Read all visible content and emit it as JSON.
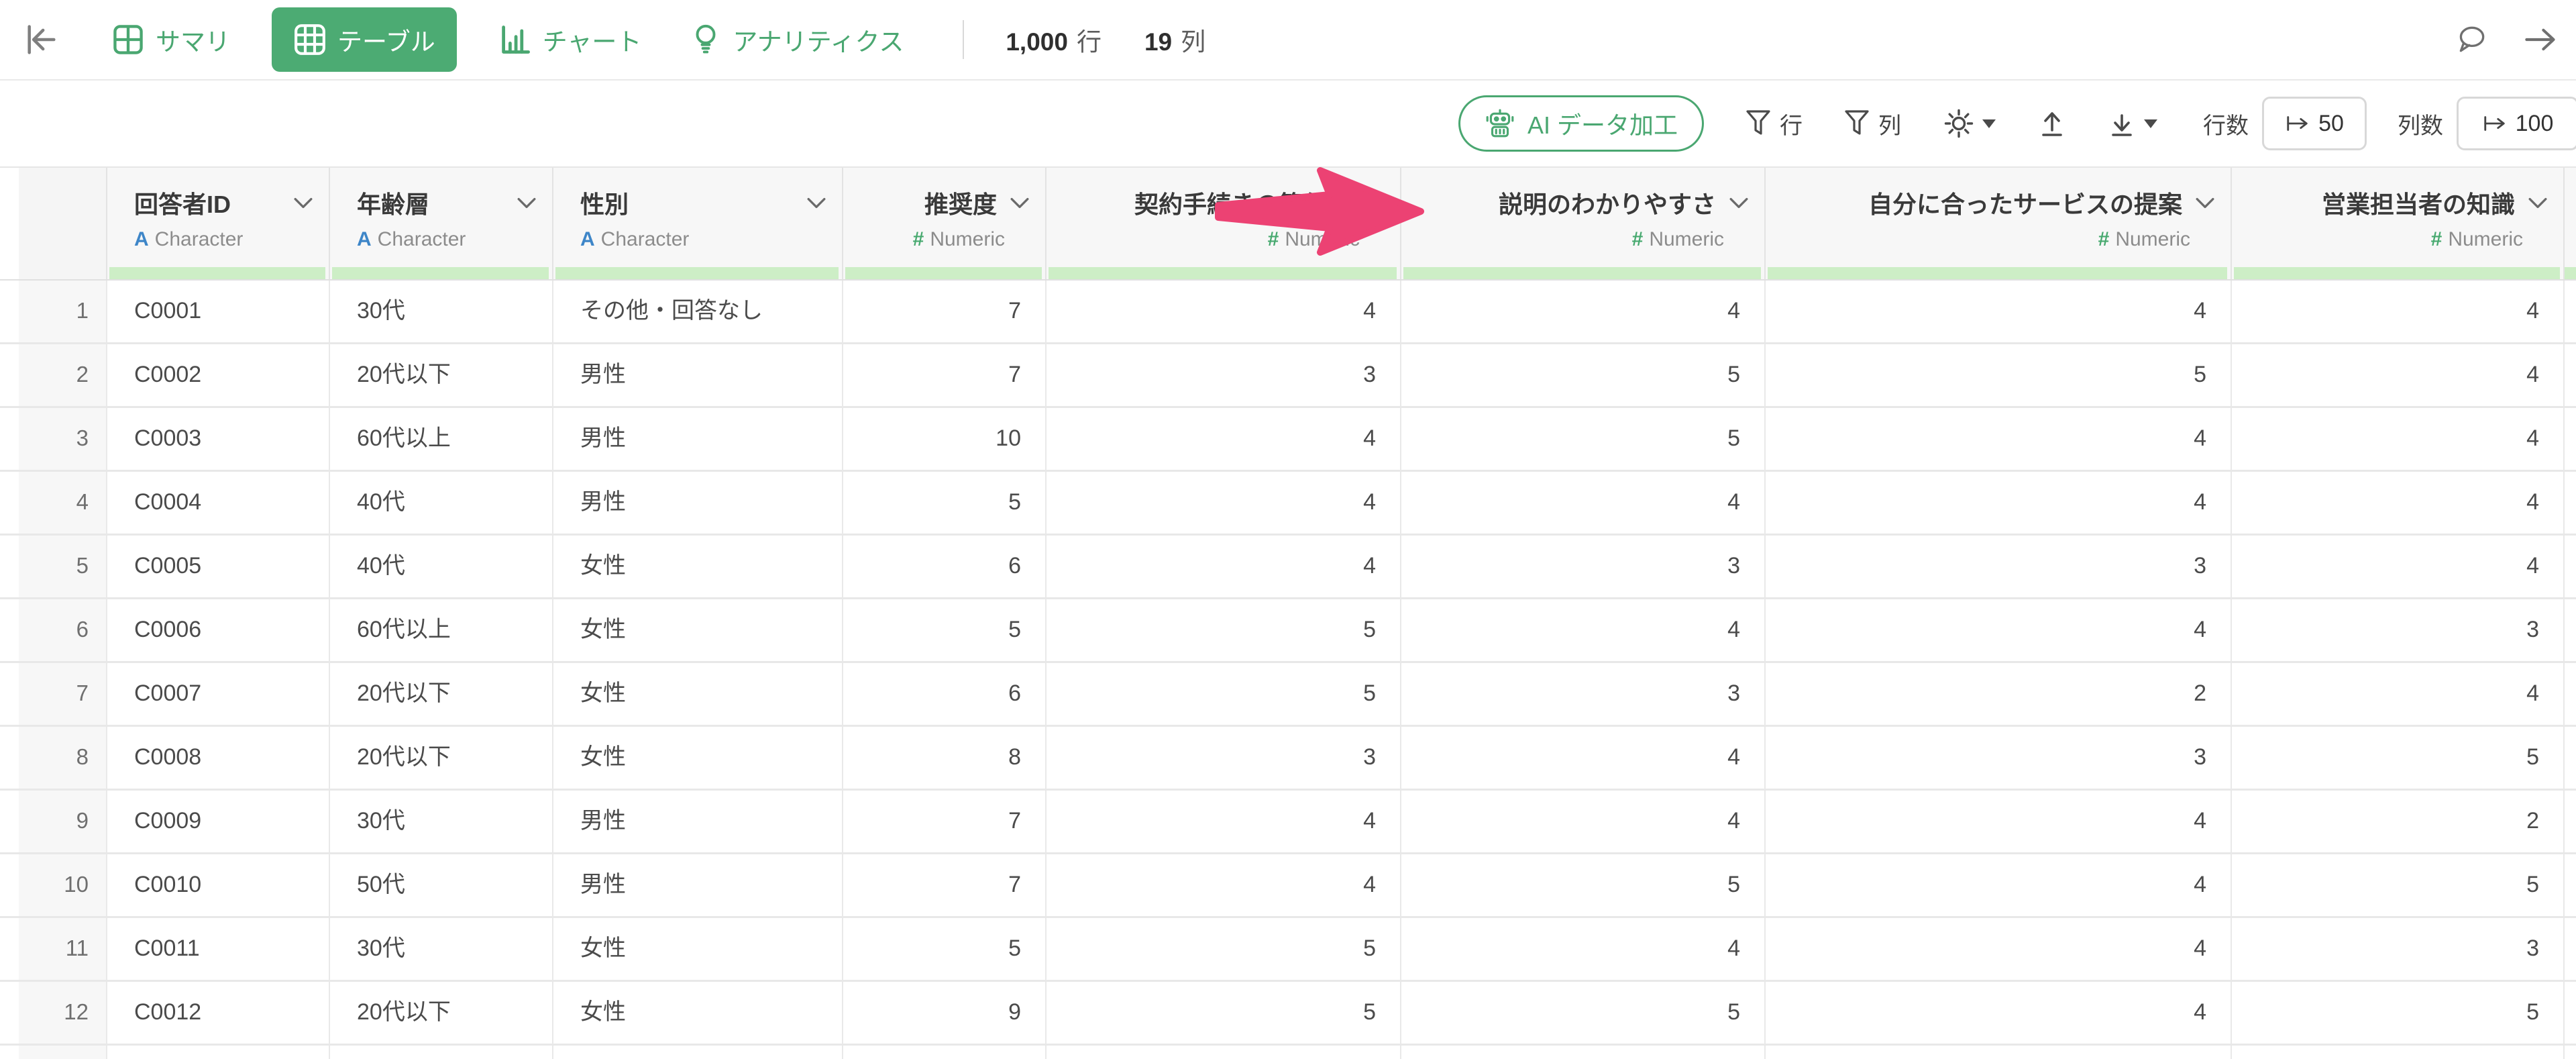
{
  "toolbar": {
    "tabs": [
      {
        "label": "サマリ",
        "selected": false
      },
      {
        "label": "テーブル",
        "selected": true
      },
      {
        "label": "チャート",
        "selected": false
      },
      {
        "label": "アナリティクス",
        "selected": false
      }
    ],
    "row_count": "1,000",
    "row_unit": "行",
    "col_count": "19",
    "col_unit": "列"
  },
  "actionbar": {
    "ai_button_label": "AI データ加工",
    "filter_rows_label": "行",
    "filter_cols_label": "列",
    "rows_label": "行数",
    "rows_value": "50",
    "cols_label": "列数",
    "cols_value": "100"
  },
  "icons": {
    "collapse-left-icon": "panel collapse arrow",
    "grid-2x2-icon": "summary grid",
    "grid-3x3-icon": "table grid",
    "bar-chart-icon": "chart bars",
    "lightbulb-icon": "analytics bulb",
    "comment-icon": "speech bubble",
    "arrow-right-icon": "open right panel",
    "robot-icon": "AI robot",
    "filter-icon": "funnel",
    "gear-icon": "settings",
    "upload-icon": "arrow up from line",
    "download-icon": "arrow down to line",
    "mapsto-icon": "jump to position",
    "chevron-down-icon": "column menu"
  },
  "colors": {
    "accent_green": "#4aa771",
    "selected_tab_green": "#4cab73",
    "light_green_fill_bar": "#cdeec6",
    "annotation_pink": "#ec4273",
    "character_type_blue": "#3e86c8",
    "numeric_type_green": "#47a96f"
  },
  "table": {
    "columns": [
      {
        "label": "回答者ID",
        "type": "Character"
      },
      {
        "label": "年齢層",
        "type": "Character"
      },
      {
        "label": "性別",
        "type": "Character"
      },
      {
        "label": "推奨度",
        "type": "Numeric"
      },
      {
        "label": "契約手続きの簡便さ",
        "type": "Numeric"
      },
      {
        "label": "説明のわかりやすさ",
        "type": "Numeric"
      },
      {
        "label": "自分に合ったサービスの提案",
        "type": "Numeric"
      },
      {
        "label": "営業担当者の知識",
        "type": "Numeric"
      }
    ],
    "rows": [
      [
        "1",
        "C0001",
        "30代",
        "その他・回答なし",
        "7",
        "4",
        "4",
        "4",
        "4"
      ],
      [
        "2",
        "C0002",
        "20代以下",
        "男性",
        "7",
        "3",
        "5",
        "5",
        "4"
      ],
      [
        "3",
        "C0003",
        "60代以上",
        "男性",
        "10",
        "4",
        "5",
        "4",
        "4"
      ],
      [
        "4",
        "C0004",
        "40代",
        "男性",
        "5",
        "4",
        "4",
        "4",
        "4"
      ],
      [
        "5",
        "C0005",
        "40代",
        "女性",
        "6",
        "4",
        "3",
        "3",
        "4"
      ],
      [
        "6",
        "C0006",
        "60代以上",
        "女性",
        "5",
        "5",
        "4",
        "4",
        "3"
      ],
      [
        "7",
        "C0007",
        "20代以下",
        "女性",
        "6",
        "5",
        "3",
        "2",
        "4"
      ],
      [
        "8",
        "C0008",
        "20代以下",
        "女性",
        "8",
        "3",
        "4",
        "3",
        "5"
      ],
      [
        "9",
        "C0009",
        "30代",
        "男性",
        "7",
        "4",
        "4",
        "4",
        "2"
      ],
      [
        "10",
        "C0010",
        "50代",
        "男性",
        "7",
        "4",
        "5",
        "4",
        "5"
      ],
      [
        "11",
        "C0011",
        "30代",
        "女性",
        "5",
        "5",
        "4",
        "4",
        "3"
      ],
      [
        "12",
        "C0012",
        "20代以下",
        "女性",
        "9",
        "5",
        "5",
        "4",
        "5"
      ]
    ]
  }
}
